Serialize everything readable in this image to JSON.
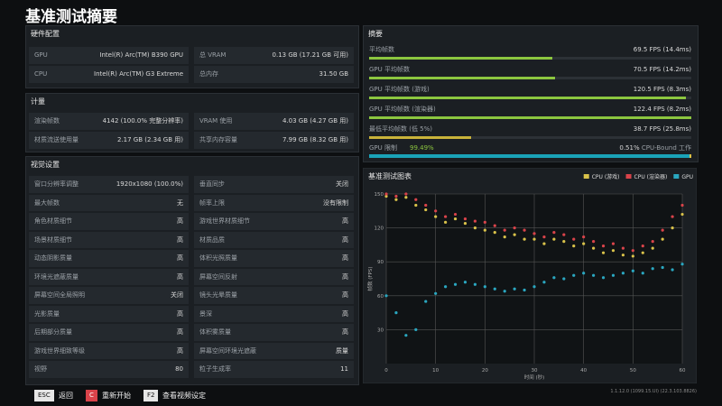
{
  "title": "基准测试摘要",
  "hardware": {
    "heading": "硬件配置",
    "rows": [
      [
        "GPU",
        "Intel(R) Arc(TM) B390 GPU",
        "总 VRAM",
        "0.13 GB (17.21 GB 可用)"
      ],
      [
        "CPU",
        "Intel(R) Arc(TM) G3 Extreme",
        "总内存",
        "31.50 GB"
      ]
    ]
  },
  "metrics": {
    "heading": "计量",
    "rows": [
      [
        "渲染帧数",
        "4142 (100.0% 完整分辨率)",
        "VRAM 使用",
        "4.03 GB (4.27 GB 用)"
      ],
      [
        "材质流送使用量",
        "2.17 GB (2.34 GB 用)",
        "共享内存容量",
        "7.99 GB (8.32 GB 用)"
      ]
    ]
  },
  "visual": {
    "heading": "视觉设置",
    "rows": [
      [
        "窗口分辨率调整",
        "1920x1080 (100.0%)",
        "垂直同步",
        "关闭"
      ],
      [
        "最大帧数",
        "无",
        "帧率上限",
        "没有限制"
      ],
      [
        "角色材质细节",
        "高",
        "游戏世界材质细节",
        "高"
      ],
      [
        "场景材质细节",
        "高",
        "材质品质",
        "高"
      ],
      [
        "动态阴影质量",
        "高",
        "体积光照质量",
        "高"
      ],
      [
        "环境光遮蔽质量",
        "高",
        "屏幕空间反射",
        "高"
      ],
      [
        "屏幕空间全局照明",
        "关闭",
        "镜头光晕质量",
        "高"
      ],
      [
        "光影质量",
        "高",
        "景深",
        "高"
      ],
      [
        "后期部分质量",
        "高",
        "体积雾质量",
        "高"
      ],
      [
        "游戏世界细致等级",
        "高",
        "屏幕空间环境光遮蔽",
        "质量"
      ],
      [
        "视野",
        "80",
        "粒子生成率",
        "11"
      ]
    ]
  },
  "summary": {
    "heading": "摘要",
    "rows": [
      {
        "name": "平均帧数",
        "value": 69.5,
        "label": "69.5 FPS (14.4ms)",
        "color": "#8cc63f"
      },
      {
        "name": "GPU 平均帧数",
        "value": 70.5,
        "label": "70.5 FPS (14.2ms)",
        "color": "#8cc63f"
      },
      {
        "name": "GPU 平均帧数 (游戏)",
        "value": 120.5,
        "label": "120.5 FPS (8.3ms)",
        "color": "#8cc63f"
      },
      {
        "name": "GPU 平均帧数 (渲染器)",
        "value": 122.4,
        "label": "122.4 FPS (8.2ms)",
        "color": "#8cc63f"
      },
      {
        "name": "最低平均帧数 (低 5%)",
        "value": 38.7,
        "label": "38.7 FPS (25.8ms)",
        "color": "#c9b33a"
      }
    ],
    "bound": {
      "name": "GPU 限制",
      "value": 99.49,
      "label": "99.49%",
      "cpu_value": 0.51,
      "cpu_label": "0.51%",
      "cpu_text": "CPU-Bound 工作",
      "color": "#1aa3b8"
    }
  },
  "chart_data": {
    "type": "scatter",
    "title": "基准测试图表",
    "xlabel": "时间 (秒)",
    "ylabel": "帧数 (FPS)",
    "x": [
      0,
      2,
      4,
      6,
      8,
      10,
      12,
      14,
      16,
      18,
      20,
      22,
      24,
      26,
      28,
      30,
      32,
      34,
      36,
      38,
      40,
      42,
      44,
      46,
      48,
      50,
      52,
      54,
      56,
      58,
      60
    ],
    "series": [
      {
        "name": "CPU (游戏)",
        "color": "#d9c24a",
        "values": [
          148,
          145,
          147,
          140,
          136,
          130,
          125,
          128,
          124,
          120,
          118,
          116,
          112,
          114,
          110,
          110,
          106,
          110,
          108,
          104,
          106,
          102,
          98,
          100,
          96,
          95,
          98,
          102,
          110,
          120,
          132
        ]
      },
      {
        "name": "CPU (渲染器)",
        "color": "#d9434a",
        "values": [
          150,
          148,
          150,
          145,
          140,
          135,
          130,
          132,
          128,
          126,
          125,
          122,
          118,
          120,
          118,
          115,
          112,
          116,
          114,
          110,
          112,
          108,
          104,
          106,
          102,
          100,
          104,
          108,
          118,
          130,
          140
        ]
      },
      {
        "name": "GPU",
        "color": "#2aa7c0",
        "values": [
          60,
          45,
          25,
          30,
          55,
          62,
          68,
          70,
          72,
          70,
          68,
          66,
          64,
          66,
          65,
          68,
          72,
          76,
          75,
          78,
          80,
          78,
          76,
          78,
          80,
          82,
          80,
          84,
          85,
          83,
          88
        ]
      }
    ],
    "xlim": [
      0,
      60
    ],
    "ylim": [
      0,
      150
    ],
    "xticks": [
      0,
      10,
      20,
      30,
      40,
      50,
      60
    ],
    "yticks": [
      30,
      60,
      90,
      120,
      150
    ],
    "grid": true
  },
  "footer": {
    "items": [
      {
        "key": "ESC",
        "label": "返回",
        "color": "#e6e6e6"
      },
      {
        "key": "C",
        "label": "重新开始",
        "color": "#d9434a"
      },
      {
        "key": "F2",
        "label": "查看视频设定",
        "color": "#e6e6e6"
      }
    ],
    "version": "1.1.12.0 (1099.15.UI) (22.3.103.8826)"
  }
}
